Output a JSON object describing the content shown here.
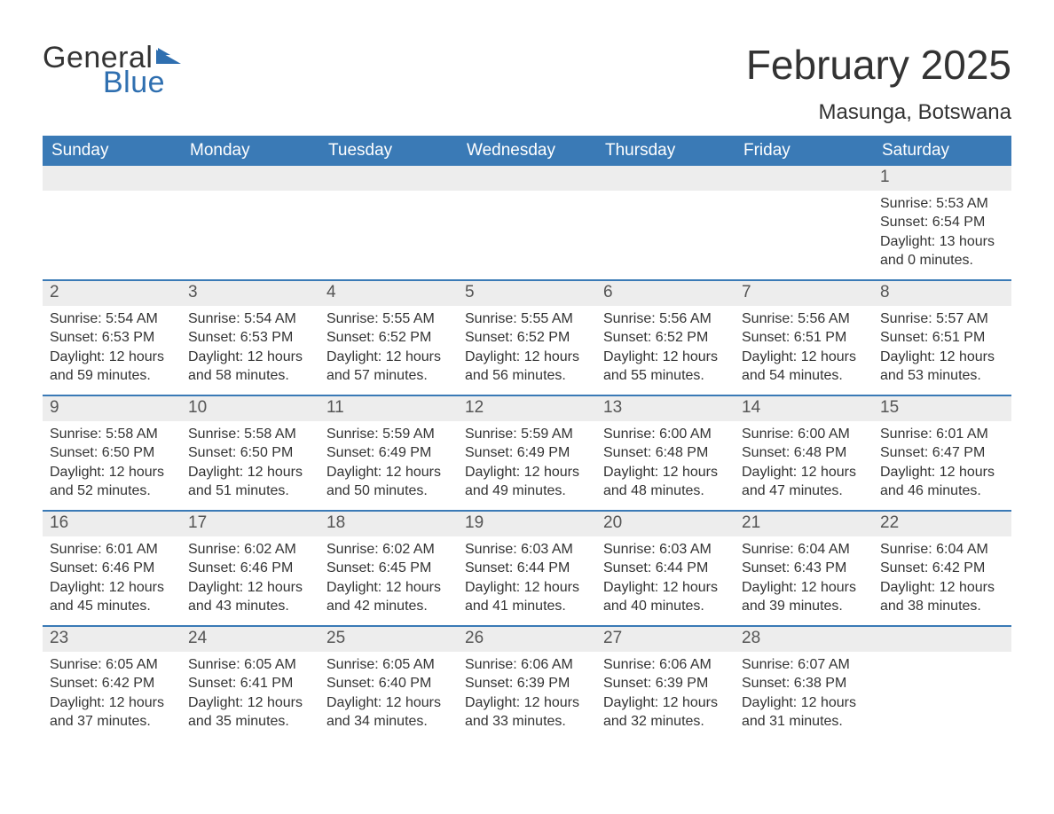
{
  "meta": {
    "type": "calendar",
    "columns": 7,
    "rows": 6,
    "colors": {
      "header_bg": "#3a7ab6",
      "header_text": "#ffffff",
      "row_divider": "#3a7ab6",
      "daynum_band_bg": "#ededed",
      "body_text": "#333333",
      "page_bg": "#ffffff",
      "logo_blue": "#2f6fb0"
    },
    "fonts": {
      "title_size_pt": 34,
      "location_size_pt": 18,
      "weekday_size_pt": 14,
      "daynum_size_pt": 14,
      "body_size_pt": 12
    }
  },
  "logo": {
    "word1": "General",
    "word2": "Blue"
  },
  "title": "February 2025",
  "location": "Masunga, Botswana",
  "weekdays": [
    "Sunday",
    "Monday",
    "Tuesday",
    "Wednesday",
    "Thursday",
    "Friday",
    "Saturday"
  ],
  "weeks": [
    [
      {
        "num": "",
        "lines": []
      },
      {
        "num": "",
        "lines": []
      },
      {
        "num": "",
        "lines": []
      },
      {
        "num": "",
        "lines": []
      },
      {
        "num": "",
        "lines": []
      },
      {
        "num": "",
        "lines": []
      },
      {
        "num": "1",
        "lines": [
          "Sunrise: 5:53 AM",
          "Sunset: 6:54 PM",
          "Daylight: 13 hours and 0 minutes."
        ]
      }
    ],
    [
      {
        "num": "2",
        "lines": [
          "Sunrise: 5:54 AM",
          "Sunset: 6:53 PM",
          "Daylight: 12 hours and 59 minutes."
        ]
      },
      {
        "num": "3",
        "lines": [
          "Sunrise: 5:54 AM",
          "Sunset: 6:53 PM",
          "Daylight: 12 hours and 58 minutes."
        ]
      },
      {
        "num": "4",
        "lines": [
          "Sunrise: 5:55 AM",
          "Sunset: 6:52 PM",
          "Daylight: 12 hours and 57 minutes."
        ]
      },
      {
        "num": "5",
        "lines": [
          "Sunrise: 5:55 AM",
          "Sunset: 6:52 PM",
          "Daylight: 12 hours and 56 minutes."
        ]
      },
      {
        "num": "6",
        "lines": [
          "Sunrise: 5:56 AM",
          "Sunset: 6:52 PM",
          "Daylight: 12 hours and 55 minutes."
        ]
      },
      {
        "num": "7",
        "lines": [
          "Sunrise: 5:56 AM",
          "Sunset: 6:51 PM",
          "Daylight: 12 hours and 54 minutes."
        ]
      },
      {
        "num": "8",
        "lines": [
          "Sunrise: 5:57 AM",
          "Sunset: 6:51 PM",
          "Daylight: 12 hours and 53 minutes."
        ]
      }
    ],
    [
      {
        "num": "9",
        "lines": [
          "Sunrise: 5:58 AM",
          "Sunset: 6:50 PM",
          "Daylight: 12 hours and 52 minutes."
        ]
      },
      {
        "num": "10",
        "lines": [
          "Sunrise: 5:58 AM",
          "Sunset: 6:50 PM",
          "Daylight: 12 hours and 51 minutes."
        ]
      },
      {
        "num": "11",
        "lines": [
          "Sunrise: 5:59 AM",
          "Sunset: 6:49 PM",
          "Daylight: 12 hours and 50 minutes."
        ]
      },
      {
        "num": "12",
        "lines": [
          "Sunrise: 5:59 AM",
          "Sunset: 6:49 PM",
          "Daylight: 12 hours and 49 minutes."
        ]
      },
      {
        "num": "13",
        "lines": [
          "Sunrise: 6:00 AM",
          "Sunset: 6:48 PM",
          "Daylight: 12 hours and 48 minutes."
        ]
      },
      {
        "num": "14",
        "lines": [
          "Sunrise: 6:00 AM",
          "Sunset: 6:48 PM",
          "Daylight: 12 hours and 47 minutes."
        ]
      },
      {
        "num": "15",
        "lines": [
          "Sunrise: 6:01 AM",
          "Sunset: 6:47 PM",
          "Daylight: 12 hours and 46 minutes."
        ]
      }
    ],
    [
      {
        "num": "16",
        "lines": [
          "Sunrise: 6:01 AM",
          "Sunset: 6:46 PM",
          "Daylight: 12 hours and 45 minutes."
        ]
      },
      {
        "num": "17",
        "lines": [
          "Sunrise: 6:02 AM",
          "Sunset: 6:46 PM",
          "Daylight: 12 hours and 43 minutes."
        ]
      },
      {
        "num": "18",
        "lines": [
          "Sunrise: 6:02 AM",
          "Sunset: 6:45 PM",
          "Daylight: 12 hours and 42 minutes."
        ]
      },
      {
        "num": "19",
        "lines": [
          "Sunrise: 6:03 AM",
          "Sunset: 6:44 PM",
          "Daylight: 12 hours and 41 minutes."
        ]
      },
      {
        "num": "20",
        "lines": [
          "Sunrise: 6:03 AM",
          "Sunset: 6:44 PM",
          "Daylight: 12 hours and 40 minutes."
        ]
      },
      {
        "num": "21",
        "lines": [
          "Sunrise: 6:04 AM",
          "Sunset: 6:43 PM",
          "Daylight: 12 hours and 39 minutes."
        ]
      },
      {
        "num": "22",
        "lines": [
          "Sunrise: 6:04 AM",
          "Sunset: 6:42 PM",
          "Daylight: 12 hours and 38 minutes."
        ]
      }
    ],
    [
      {
        "num": "23",
        "lines": [
          "Sunrise: 6:05 AM",
          "Sunset: 6:42 PM",
          "Daylight: 12 hours and 37 minutes."
        ]
      },
      {
        "num": "24",
        "lines": [
          "Sunrise: 6:05 AM",
          "Sunset: 6:41 PM",
          "Daylight: 12 hours and 35 minutes."
        ]
      },
      {
        "num": "25",
        "lines": [
          "Sunrise: 6:05 AM",
          "Sunset: 6:40 PM",
          "Daylight: 12 hours and 34 minutes."
        ]
      },
      {
        "num": "26",
        "lines": [
          "Sunrise: 6:06 AM",
          "Sunset: 6:39 PM",
          "Daylight: 12 hours and 33 minutes."
        ]
      },
      {
        "num": "27",
        "lines": [
          "Sunrise: 6:06 AM",
          "Sunset: 6:39 PM",
          "Daylight: 12 hours and 32 minutes."
        ]
      },
      {
        "num": "28",
        "lines": [
          "Sunrise: 6:07 AM",
          "Sunset: 6:38 PM",
          "Daylight: 12 hours and 31 minutes."
        ]
      },
      {
        "num": "",
        "lines": []
      }
    ]
  ]
}
